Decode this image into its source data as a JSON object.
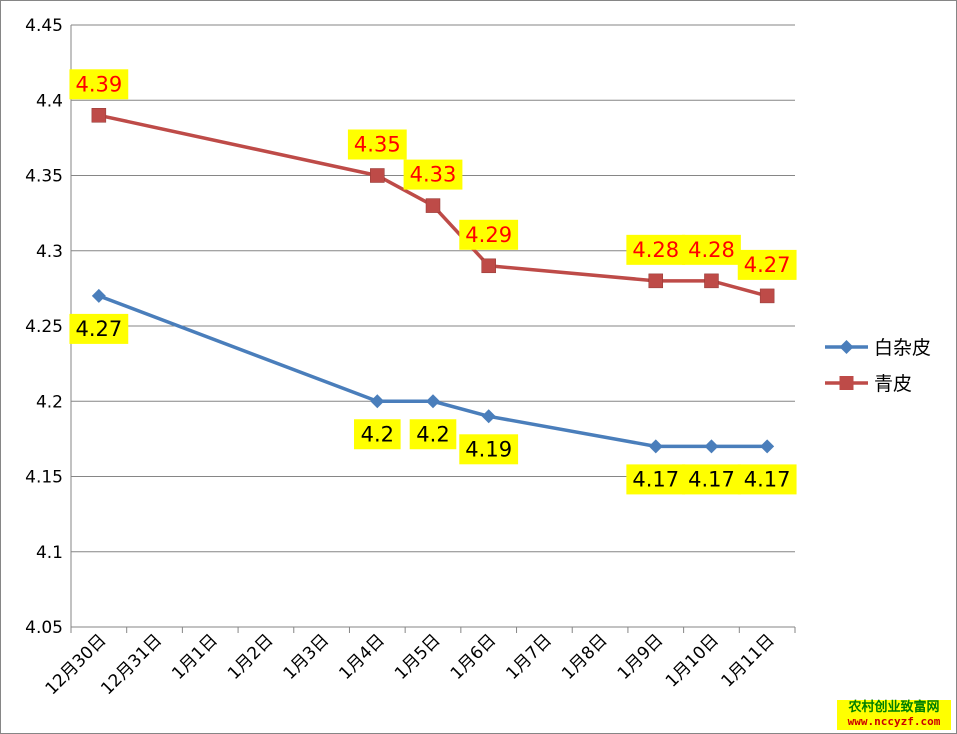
{
  "chart_data": {
    "type": "line",
    "categories": [
      "12月30日",
      "12月31日",
      "1月1日",
      "1月2日",
      "1月3日",
      "1月4日",
      "1月5日",
      "1月6日",
      "1月7日",
      "1月8日",
      "1月9日",
      "1月10日",
      "1月11日"
    ],
    "ylim": [
      4.05,
      4.45
    ],
    "y_ticks": [
      "4.05",
      "4.1",
      "4.15",
      "4.2",
      "4.25",
      "4.3",
      "4.35",
      "4.4",
      "4.45"
    ],
    "grid": true,
    "legend_position": "right",
    "series": [
      {
        "name": "白杂皮",
        "color": "#4a7ebb",
        "marker": "diamond",
        "label_color": "#000000",
        "points": [
          {
            "x": "12月30日",
            "y": 4.27,
            "label": "4.27"
          },
          {
            "x": "1月4日",
            "y": 4.2,
            "label": "4.2"
          },
          {
            "x": "1月5日",
            "y": 4.2,
            "label": "4.2"
          },
          {
            "x": "1月6日",
            "y": 4.19,
            "label": "4.19"
          },
          {
            "x": "1月9日",
            "y": 4.17,
            "label": "4.17"
          },
          {
            "x": "1月10日",
            "y": 4.17,
            "label": "4.17"
          },
          {
            "x": "1月11日",
            "y": 4.17,
            "label": "4.17"
          }
        ]
      },
      {
        "name": "青皮",
        "color": "#be4b48",
        "marker": "square",
        "label_color": "#ff0000",
        "points": [
          {
            "x": "12月30日",
            "y": 4.39,
            "label": "4.39"
          },
          {
            "x": "1月4日",
            "y": 4.35,
            "label": "4.35"
          },
          {
            "x": "1月5日",
            "y": 4.33,
            "label": "4.33"
          },
          {
            "x": "1月6日",
            "y": 4.29,
            "label": "4.29"
          },
          {
            "x": "1月9日",
            "y": 4.28,
            "label": "4.28"
          },
          {
            "x": "1月10日",
            "y": 4.28,
            "label": "4.28"
          },
          {
            "x": "1月11日",
            "y": 4.27,
            "label": "4.27"
          }
        ]
      }
    ],
    "data_label_background": "#ffff00"
  },
  "watermark": {
    "name": "农村创业致富网",
    "url": "www.nccyzf.com"
  }
}
